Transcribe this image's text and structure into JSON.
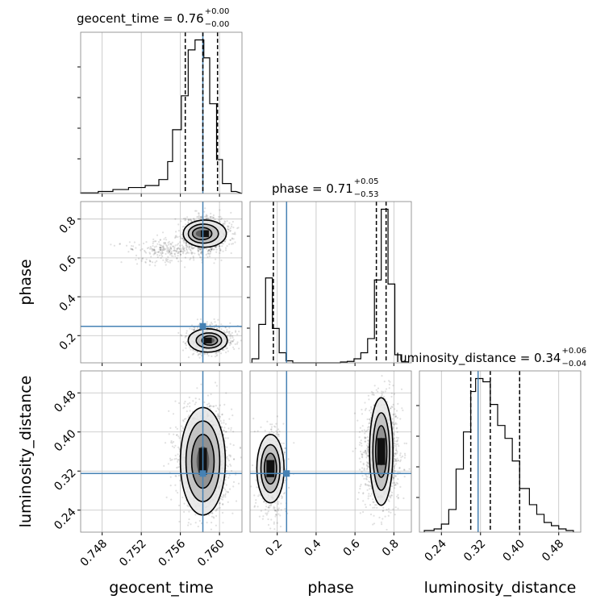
{
  "chart_data": {
    "type": "corner",
    "colors": {
      "truth": "#4682b4",
      "hist": "#000000",
      "grid": "#c0c0c0",
      "points": "#000000"
    },
    "truths": {
      "geocent_time": 0.7583,
      "phase": 0.248,
      "luminosity_distance": 0.315
    },
    "parameters": [
      {
        "name": "geocent_time",
        "xlabel": "geocent_time",
        "title_prefix": "geocent_time = 0.76",
        "title_sup": "+0.00",
        "title_sub": "−0.00",
        "range": [
          0.7458,
          0.7623
        ],
        "ticks": [
          0.748,
          0.752,
          0.756,
          0.76
        ],
        "tick_labels": [
          "0.748",
          "0.752",
          "0.756",
          "0.760"
        ],
        "quantiles": [
          0.7565,
          0.7583,
          0.7598
        ],
        "hist_edges": [
          0.7458,
          0.7476,
          0.7491,
          0.7507,
          0.7524,
          0.7538,
          0.7547,
          0.7552,
          0.7561,
          0.7568,
          0.7575,
          0.7584,
          0.759,
          0.7597,
          0.7603,
          0.7612,
          0.7617,
          0.7623
        ],
        "hist_counts": [
          0.3,
          1,
          2,
          3,
          4,
          7,
          16,
          32,
          49,
          72,
          77,
          68,
          45,
          17,
          5,
          1
        ]
      },
      {
        "name": "phase",
        "xlabel": "phase",
        "ylabel": "phase",
        "title_prefix": "phase = 0.71",
        "title_sup": "+0.05",
        "title_sub": "−0.53",
        "range": [
          0.06,
          0.89
        ],
        "ticks": [
          0.2,
          0.4,
          0.6,
          0.8
        ],
        "tick_labels": [
          "0.2",
          "0.4",
          "0.6",
          "0.8"
        ],
        "quantiles": [
          0.18,
          0.71,
          0.76
        ],
        "hist_edges": [
          0.07,
          0.105,
          0.14,
          0.175,
          0.21,
          0.245,
          0.28,
          0.315,
          0.35,
          0.385,
          0.42,
          0.455,
          0.49,
          0.525,
          0.56,
          0.595,
          0.63,
          0.665,
          0.7,
          0.735,
          0.77,
          0.805,
          0.84,
          0.875
        ],
        "hist_counts": [
          2,
          19,
          42,
          17,
          5,
          1,
          0,
          0,
          0,
          0,
          0,
          0,
          0,
          0.4,
          0.7,
          2,
          5,
          12,
          41,
          76,
          39,
          4,
          0.5
        ]
      },
      {
        "name": "luminosity_distance",
        "xlabel": "luminosity_distance",
        "ylabel": "luminosity_distance",
        "title_prefix": "luminosity_distance = 0.34",
        "title_sup": "+0.06",
        "title_sub": "−0.04",
        "range": [
          0.195,
          0.525
        ],
        "ticks": [
          0.24,
          0.32,
          0.4,
          0.48
        ],
        "tick_labels": [
          "0.24",
          "0.32",
          "0.40",
          "0.48"
        ],
        "quantiles": [
          0.3,
          0.34,
          0.4
        ],
        "hist_edges": [
          0.205,
          0.225,
          0.24,
          0.255,
          0.27,
          0.285,
          0.3,
          0.31,
          0.325,
          0.34,
          0.355,
          0.37,
          0.385,
          0.4,
          0.42,
          0.435,
          0.45,
          0.465,
          0.48,
          0.495,
          0.51
        ],
        "hist_counts": [
          1,
          2,
          5,
          14,
          39,
          62,
          87,
          95,
          93,
          79,
          66,
          58,
          44,
          27,
          17,
          11,
          6,
          4,
          2,
          1
        ]
      }
    ]
  }
}
